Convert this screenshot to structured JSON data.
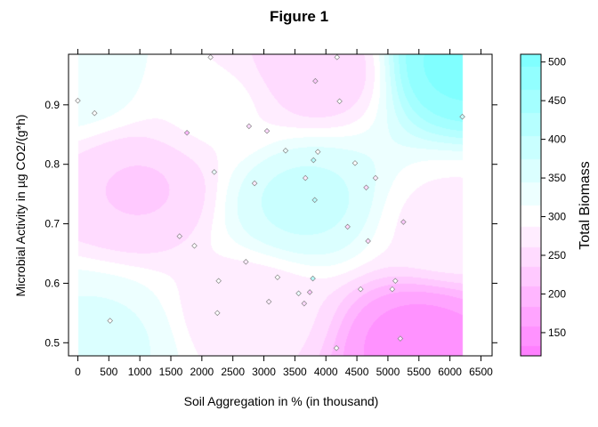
{
  "chart_data": {
    "type": "heatmap",
    "title": "Figure 1",
    "xlabel": "Soil Aggregation in % (in thousand)",
    "ylabel": "Microbial Activity in µg CO2/(g*h)",
    "colorbar_label": "Total Biomass",
    "xlim": [
      -150,
      6680
    ],
    "ylim": [
      0.478,
      0.985
    ],
    "x_ticks": [
      "0",
      "500",
      "1000",
      "1500",
      "2000",
      "2500",
      "3000",
      "3500",
      "4000",
      "4500",
      "5000",
      "5500",
      "6000",
      "6500"
    ],
    "y_ticks": [
      "0.5",
      "0.6",
      "0.7",
      "0.8",
      "0.9"
    ],
    "colorbar_range": [
      120,
      510
    ],
    "colorbar_ticks": [
      "150",
      "200",
      "250",
      "300",
      "350",
      "400",
      "450",
      "500"
    ],
    "data_extent_x": [
      0,
      6200
    ],
    "colors": {
      "low": "#ff80ff",
      "mid": "#ffffff",
      "high": "#80ffff",
      "point_fill_low": "#ee88ee",
      "point_fill_high": "#66e0e8",
      "point_stroke": "#888888"
    },
    "surface_anchors": [
      {
        "x": 1000,
        "y": 0.76,
        "value": 235
      },
      {
        "x": 3650,
        "y": 0.74,
        "value": 380
      },
      {
        "x": 6200,
        "y": 0.97,
        "value": 500
      },
      {
        "x": 5500,
        "y": 0.5,
        "value": 150
      },
      {
        "x": 3800,
        "y": 0.96,
        "value": 240
      },
      {
        "x": 0,
        "y": 0.95,
        "value": 330
      },
      {
        "x": 300,
        "y": 0.5,
        "value": 350
      },
      {
        "x": 2200,
        "y": 0.9,
        "value": 290
      },
      {
        "x": 2800,
        "y": 0.55,
        "value": 270
      },
      {
        "x": 6000,
        "y": 0.7,
        "value": 280
      }
    ],
    "points": [
      {
        "x": 0,
        "y": 0.907,
        "value": 300
      },
      {
        "x": 270,
        "y": 0.886,
        "value": 300
      },
      {
        "x": 520,
        "y": 0.537,
        "value": 300
      },
      {
        "x": 1640,
        "y": 0.679,
        "value": 270
      },
      {
        "x": 1760,
        "y": 0.853,
        "value": 200
      },
      {
        "x": 1880,
        "y": 0.663,
        "value": 300
      },
      {
        "x": 2140,
        "y": 0.98,
        "value": 290
      },
      {
        "x": 2200,
        "y": 0.787,
        "value": 320
      },
      {
        "x": 2270,
        "y": 0.604,
        "value": 290
      },
      {
        "x": 2250,
        "y": 0.55,
        "value": 300
      },
      {
        "x": 2710,
        "y": 0.636,
        "value": 270
      },
      {
        "x": 2760,
        "y": 0.864,
        "value": 260
      },
      {
        "x": 2850,
        "y": 0.768,
        "value": 280
      },
      {
        "x": 3050,
        "y": 0.856,
        "value": 260
      },
      {
        "x": 3080,
        "y": 0.569,
        "value": 280
      },
      {
        "x": 3220,
        "y": 0.61,
        "value": 290
      },
      {
        "x": 3350,
        "y": 0.823,
        "value": 330
      },
      {
        "x": 3560,
        "y": 0.583,
        "value": 320
      },
      {
        "x": 3650,
        "y": 0.566,
        "value": 240
      },
      {
        "x": 3670,
        "y": 0.777,
        "value": 270
      },
      {
        "x": 3740,
        "y": 0.585,
        "value": 230
      },
      {
        "x": 3790,
        "y": 0.608,
        "value": 420
      },
      {
        "x": 3800,
        "y": 0.807,
        "value": 420
      },
      {
        "x": 3820,
        "y": 0.74,
        "value": 420
      },
      {
        "x": 3830,
        "y": 0.94,
        "value": 230
      },
      {
        "x": 3870,
        "y": 0.821,
        "value": 300
      },
      {
        "x": 4170,
        "y": 0.491,
        "value": 300
      },
      {
        "x": 4180,
        "y": 0.98,
        "value": 290
      },
      {
        "x": 4220,
        "y": 0.906,
        "value": 300
      },
      {
        "x": 4350,
        "y": 0.695,
        "value": 260
      },
      {
        "x": 4470,
        "y": 0.802,
        "value": 290
      },
      {
        "x": 4560,
        "y": 0.59,
        "value": 300
      },
      {
        "x": 4650,
        "y": 0.761,
        "value": 240
      },
      {
        "x": 4680,
        "y": 0.671,
        "value": 240
      },
      {
        "x": 4800,
        "y": 0.777,
        "value": 280
      },
      {
        "x": 5070,
        "y": 0.59,
        "value": 290
      },
      {
        "x": 5120,
        "y": 0.604,
        "value": 290
      },
      {
        "x": 5200,
        "y": 0.507,
        "value": 260
      },
      {
        "x": 5250,
        "y": 0.703,
        "value": 220
      },
      {
        "x": 6200,
        "y": 0.88,
        "value": 380
      }
    ],
    "grid": false,
    "legend": "right colorbar"
  }
}
